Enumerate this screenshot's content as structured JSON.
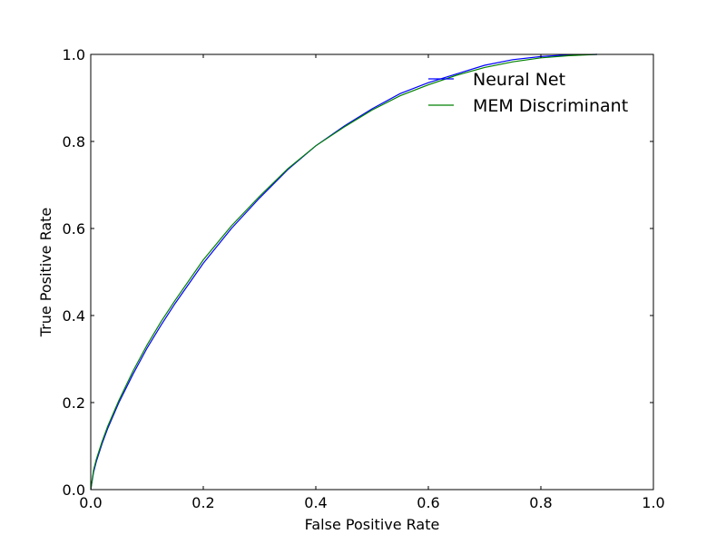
{
  "chart_data": {
    "type": "line",
    "title": "",
    "xlabel": "False Positive Rate",
    "ylabel": "True Positive Rate",
    "xlim": [
      0.0,
      1.0
    ],
    "ylim": [
      0.0,
      1.0
    ],
    "xticks": [
      "0.0",
      "0.2",
      "0.4",
      "0.6",
      "0.8",
      "1.0"
    ],
    "yticks": [
      "0.0",
      "0.2",
      "0.4",
      "0.6",
      "0.8",
      "1.0"
    ],
    "grid": false,
    "legend_position": "top-right",
    "series": [
      {
        "name": "Neural Net",
        "color": "#0000ff",
        "x": [
          0.0,
          0.005,
          0.01,
          0.02,
          0.03,
          0.05,
          0.075,
          0.1,
          0.125,
          0.15,
          0.2,
          0.25,
          0.3,
          0.35,
          0.4,
          0.45,
          0.5,
          0.55,
          0.6,
          0.65,
          0.7,
          0.75,
          0.8,
          0.85,
          0.9
        ],
        "y": [
          0.0,
          0.04,
          0.065,
          0.105,
          0.14,
          0.2,
          0.265,
          0.325,
          0.378,
          0.428,
          0.52,
          0.6,
          0.67,
          0.735,
          0.79,
          0.835,
          0.875,
          0.91,
          0.935,
          0.955,
          0.975,
          0.988,
          0.995,
          0.999,
          1.0
        ]
      },
      {
        "name": "MEM Discriminant",
        "color": "#008000",
        "x": [
          0.0,
          0.005,
          0.01,
          0.02,
          0.03,
          0.05,
          0.075,
          0.1,
          0.125,
          0.15,
          0.2,
          0.25,
          0.3,
          0.35,
          0.4,
          0.45,
          0.5,
          0.55,
          0.6,
          0.65,
          0.7,
          0.75,
          0.8,
          0.85,
          0.9
        ],
        "y": [
          0.0,
          0.045,
          0.07,
          0.11,
          0.145,
          0.205,
          0.272,
          0.332,
          0.386,
          0.435,
          0.528,
          0.606,
          0.674,
          0.737,
          0.79,
          0.833,
          0.872,
          0.905,
          0.93,
          0.952,
          0.97,
          0.983,
          0.992,
          0.997,
          1.0
        ]
      }
    ]
  }
}
